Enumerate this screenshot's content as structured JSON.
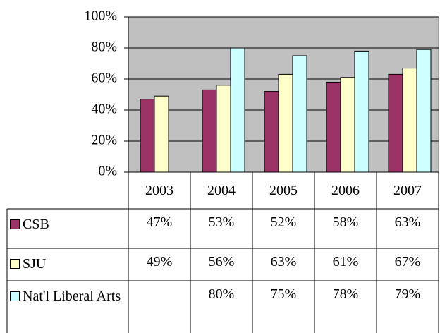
{
  "chart_data": {
    "type": "bar",
    "categories": [
      "2003",
      "2004",
      "2005",
      "2006",
      "2007"
    ],
    "series": [
      {
        "name": "CSB",
        "color": "#993366",
        "values": [
          47,
          53,
          52,
          58,
          63
        ],
        "value_labels": [
          "47%",
          "53%",
          "52%",
          "58%",
          "63%"
        ]
      },
      {
        "name": "SJU",
        "color": "#ffffcc",
        "values": [
          49,
          56,
          63,
          61,
          67
        ],
        "value_labels": [
          "49%",
          "56%",
          "63%",
          "61%",
          "67%"
        ]
      },
      {
        "name": "Nat'l Liberal Arts",
        "color": "#ccffff",
        "values": [
          null,
          80,
          75,
          78,
          79
        ],
        "value_labels": [
          null,
          "80%",
          "75%",
          "78%",
          "79%"
        ]
      }
    ],
    "ylim": [
      0,
      100
    ],
    "yticks": [
      {
        "value": 0,
        "label": "0%"
      },
      {
        "value": 20,
        "label": "20%"
      },
      {
        "value": 40,
        "label": "40%"
      },
      {
        "value": 60,
        "label": "60%"
      },
      {
        "value": 80,
        "label": "80%"
      },
      {
        "value": 100,
        "label": "100%"
      }
    ],
    "grid": true,
    "plot_background": "#c0c0c0"
  }
}
